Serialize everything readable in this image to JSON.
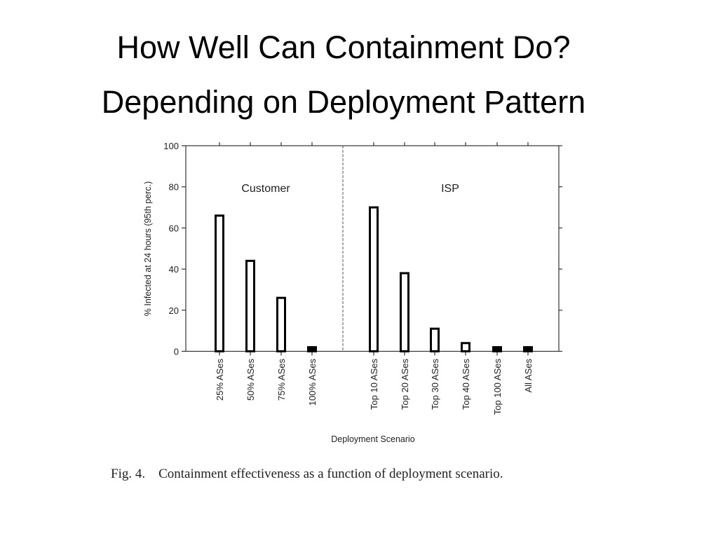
{
  "slide": {
    "title_line1": "How Well Can Containment Do?",
    "title_line2": "Depending on Deployment Pattern",
    "caption": "Fig. 4.    Containment effectiveness as a function of deployment scenario."
  },
  "chart_data": {
    "type": "bar",
    "title": "",
    "xlabel": "Deployment Scenario",
    "ylabel": "% Infected at 24 hours (95th perc.)",
    "ylim": [
      0,
      100
    ],
    "yticks": [
      0,
      20,
      40,
      60,
      80,
      100
    ],
    "grid": false,
    "bar_style": "hollow black outline",
    "groups": [
      {
        "name": "Customer",
        "categories": [
          "25% ASes",
          "50% ASes",
          "75% ASes",
          "100% ASes"
        ],
        "values": [
          66,
          44,
          26,
          2
        ]
      },
      {
        "name": "ISP",
        "categories": [
          "Top 10 ASes",
          "Top 20 ASes",
          "Top 30 ASes",
          "Top 40 ASes",
          "Top 100 ASes",
          "All ASes"
        ],
        "values": [
          70,
          38,
          11,
          4,
          2,
          2
        ]
      }
    ]
  }
}
